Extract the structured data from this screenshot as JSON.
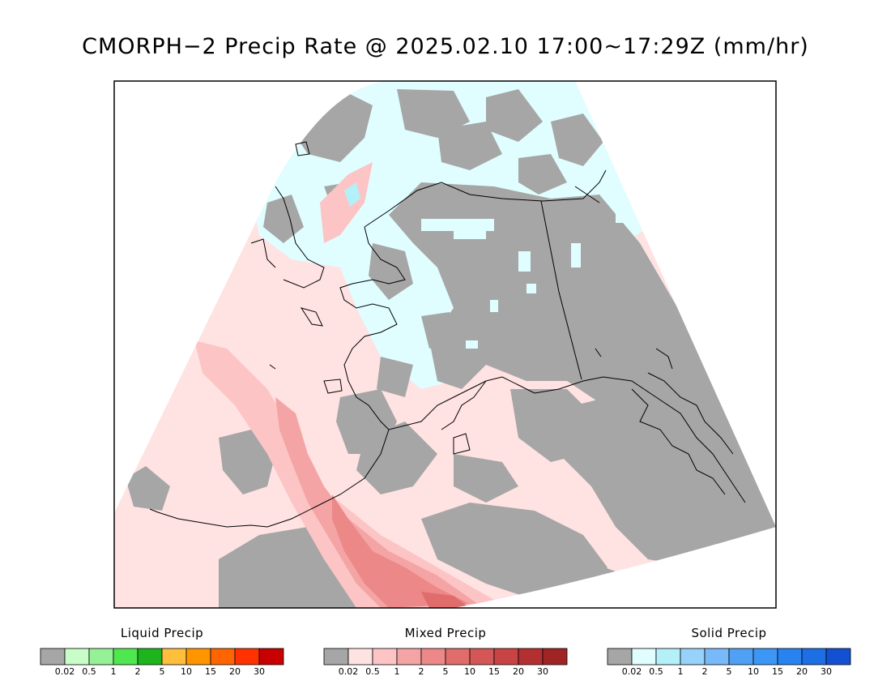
{
  "title": "CMORPH−2 Precip Rate @ 2025.02.10 17:00~17:29Z (mm/hr)",
  "legends": [
    {
      "title": "Liquid Precip",
      "labels": [
        "0.02",
        "0.5",
        "1",
        "2",
        "5",
        "10",
        "15",
        "20",
        "30"
      ],
      "colors": [
        "#a6a6a6",
        "#c8fcc8",
        "#96f096",
        "#50e650",
        "#1eb41e",
        "#ffbe3c",
        "#ff9600",
        "#ff6400",
        "#ff3200",
        "#c80000"
      ]
    },
    {
      "title": "Mixed Precip",
      "labels": [
        "0.02",
        "0.5",
        "1",
        "2",
        "5",
        "10",
        "15",
        "20",
        "30"
      ],
      "colors": [
        "#a6a6a6",
        "#ffe2e2",
        "#fcc4c4",
        "#f4a4a4",
        "#ec8888",
        "#e06c6c",
        "#d45656",
        "#c84444",
        "#b43030",
        "#a02424"
      ]
    },
    {
      "title": "Solid Precip",
      "labels": [
        "0.02",
        "0.5",
        "1",
        "2",
        "5",
        "10",
        "15",
        "20",
        "30"
      ],
      "colors": [
        "#a6a6a6",
        "#e0feff",
        "#b4f0fa",
        "#96d2fa",
        "#78b9fa",
        "#50a0f5",
        "#3c96f5",
        "#2882f0",
        "#1e6ee6",
        "#1450d2"
      ]
    }
  ],
  "map_colors": {
    "no_precip": "#a6a6a6",
    "mixed_light": "#ffe2e2",
    "mixed_1": "#fcc4c4",
    "mixed_2": "#f4a4a4",
    "mixed_5": "#ec8888",
    "mixed_10": "#e06c6c",
    "solid_light": "#e0feff",
    "solid_1": "#b4f0fa",
    "coastline": "#000000"
  }
}
